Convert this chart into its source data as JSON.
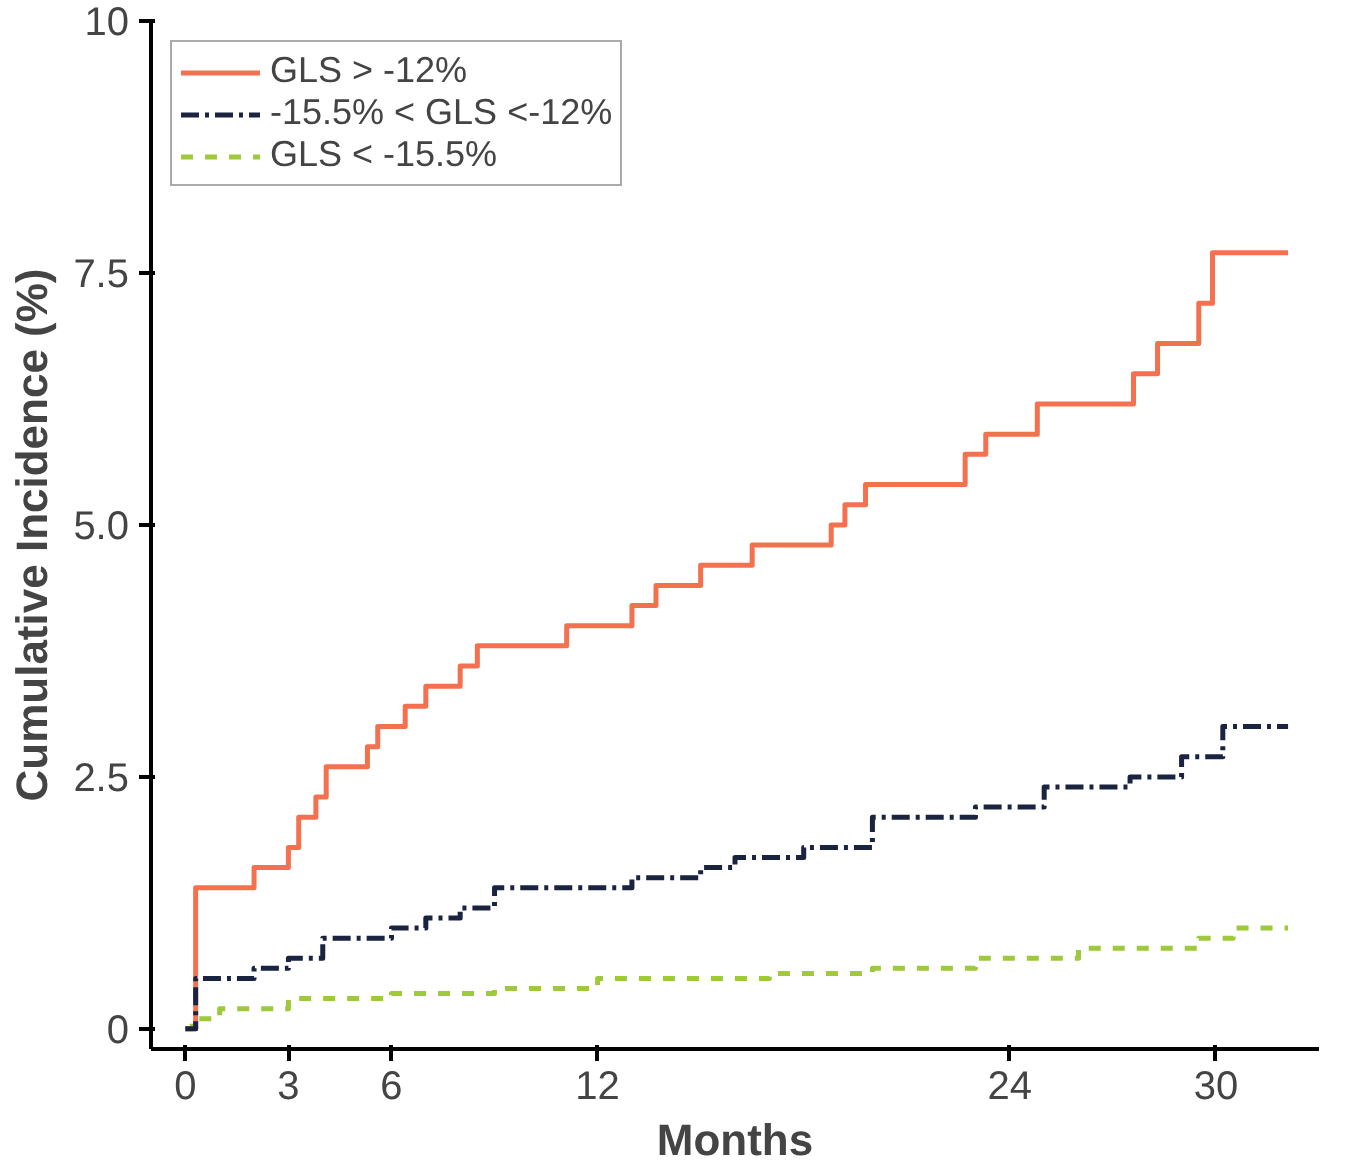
{
  "chart_data": {
    "type": "step",
    "xlabel": "Months",
    "ylabel": "Cumulative Incidence (%)",
    "xlim": [
      -1,
      33
    ],
    "ylim": [
      -0.2,
      10
    ],
    "xticks": [
      0,
      3,
      6,
      12,
      24,
      30
    ],
    "yticks": [
      0,
      2.5,
      {
        "value": 5,
        "label": "5.0"
      },
      7.5,
      10
    ],
    "grid": false,
    "legend": "top left",
    "series": [
      {
        "name": "GLS > -12%",
        "color": "#f4714f",
        "line_style": "solid",
        "x": [
          0,
          0.3,
          2,
          3,
          3.3,
          3.8,
          4.1,
          5.3,
          5.6,
          6.4,
          7,
          8,
          8.5,
          11.1,
          13,
          13.7,
          15,
          16.5,
          18.8,
          19.2,
          19.8,
          22.7,
          23.3,
          24.8,
          27.6,
          28.3,
          29.5,
          29.9,
          32.1
        ],
        "values": [
          0,
          1.4,
          1.6,
          1.8,
          2.1,
          2.3,
          2.6,
          2.8,
          3.0,
          3.2,
          3.4,
          3.6,
          3.8,
          4.0,
          4.2,
          4.4,
          4.6,
          4.8,
          5.0,
          5.2,
          5.4,
          5.7,
          5.9,
          6.2,
          6.5,
          6.8,
          7.2,
          7.7,
          7.7
        ]
      },
      {
        "name": "-15.5% < GLS <-12%",
        "color": "#1a2340",
        "line_style": "dashdot",
        "x": [
          0,
          0.3,
          2,
          3,
          4,
          6,
          7,
          8,
          9,
          13,
          15,
          16,
          18,
          20,
          23,
          25,
          27.5,
          29,
          30.2,
          32.1
        ],
        "values": [
          0,
          0.5,
          0.6,
          0.7,
          0.9,
          1.0,
          1.1,
          1.2,
          1.4,
          1.5,
          1.6,
          1.7,
          1.8,
          2.1,
          2.2,
          2.4,
          2.5,
          2.7,
          3.0,
          3.0
        ]
      },
      {
        "name": "GLS < -15.5%",
        "color": "#9dc93b",
        "line_style": "dashed",
        "x": [
          0,
          0.2,
          1,
          3,
          6,
          9,
          12,
          17,
          20,
          23,
          26,
          29.5,
          30.5,
          32.1
        ],
        "values": [
          0,
          0.1,
          0.2,
          0.3,
          0.35,
          0.4,
          0.5,
          0.55,
          0.6,
          0.7,
          0.8,
          0.9,
          1.0,
          1.0
        ]
      }
    ]
  }
}
